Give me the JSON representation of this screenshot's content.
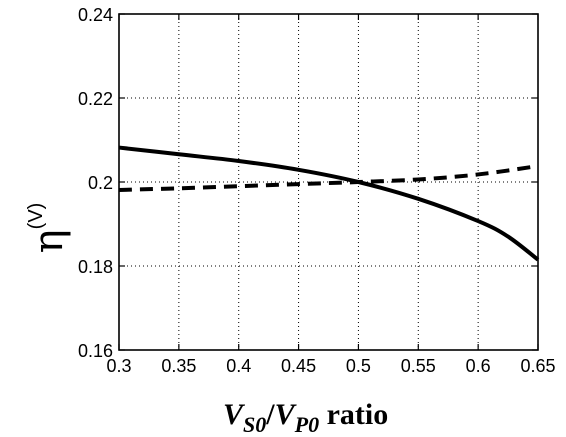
{
  "chart_data": {
    "type": "line",
    "title": "",
    "xlabel": {
      "v1": "V",
      "sub1": "S0",
      "slash": "/",
      "v2": "V",
      "sub2": "P0",
      "suffix": " ratio"
    },
    "ylabel": {
      "symbol": "η",
      "superscript": "(V)"
    },
    "xlim": [
      0.3,
      0.65
    ],
    "ylim": [
      0.16,
      0.24
    ],
    "x_ticks": [
      0.3,
      0.35,
      0.4,
      0.45,
      0.5,
      0.55,
      0.6,
      0.65
    ],
    "x_tick_labels": [
      "0.3",
      "0.35",
      "0.4",
      "0.45",
      "0.5",
      "0.55",
      "0.6",
      "0.65"
    ],
    "y_ticks": [
      0.16,
      0.18,
      0.2,
      0.22,
      0.24
    ],
    "y_tick_labels": [
      "0.16",
      "0.18",
      "0.2",
      "0.22",
      "0.24"
    ],
    "grid": true,
    "legend": "none",
    "series": [
      {
        "style": "solid",
        "color": "#000000",
        "x": [
          0.3,
          0.35,
          0.4,
          0.45,
          0.5,
          0.55,
          0.6,
          0.625,
          0.65
        ],
        "y": [
          0.2082,
          0.2066,
          0.205,
          0.2029,
          0.2,
          0.196,
          0.1907,
          0.187,
          0.1815
        ]
      },
      {
        "style": "dashed",
        "color": "#000000",
        "x": [
          0.3,
          0.35,
          0.4,
          0.45,
          0.5,
          0.55,
          0.6,
          0.65
        ],
        "y": [
          0.1981,
          0.1985,
          0.199,
          0.1995,
          0.2,
          0.2006,
          0.2018,
          0.2038
        ]
      }
    ]
  }
}
